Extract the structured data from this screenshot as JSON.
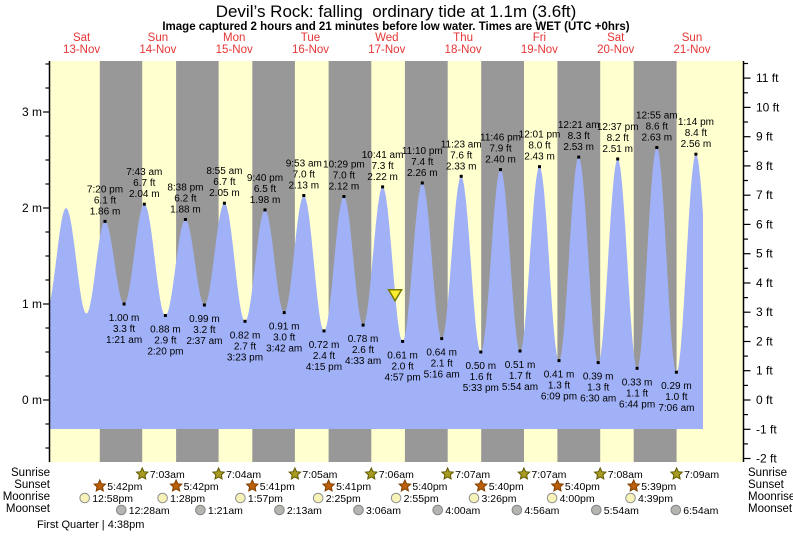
{
  "title": "Devil’s Rock: falling  ordinary tide at 1.1m (3.6ft)",
  "subtitle": "Image captured 2 hours and 21 minutes before low water. Times are WET (UTC +0hrs)",
  "chart_data": {
    "type": "area",
    "title": "Devil’s Rock: falling  ordinary tide at 1.1m (3.6ft)",
    "x_axis": "time (Nov 13 - Nov 21)",
    "ylabel_left": "metres",
    "ylabel_right": "feet",
    "ylim_m": [
      -0.65,
      3.55
    ],
    "grid": false,
    "days": [
      {
        "day": "Sat",
        "date": "13-Nov"
      },
      {
        "day": "Sun",
        "date": "14-Nov"
      },
      {
        "day": "Mon",
        "date": "15-Nov"
      },
      {
        "day": "Tue",
        "date": "16-Nov"
      },
      {
        "day": "Wed",
        "date": "17-Nov"
      },
      {
        "day": "Thu",
        "date": "18-Nov"
      },
      {
        "day": "Fri",
        "date": "19-Nov"
      },
      {
        "day": "Sat",
        "date": "20-Nov"
      },
      {
        "day": "Sun",
        "date": "21-Nov"
      }
    ],
    "left_axis_ticks": [
      {
        "v": 3,
        "label": "3 m"
      },
      {
        "v": 2,
        "label": "2 m"
      },
      {
        "v": 1,
        "label": "1 m"
      },
      {
        "v": 0,
        "label": "0 m"
      }
    ],
    "right_axis_ticks": [
      {
        "v": 11,
        "label": "11 ft"
      },
      {
        "v": 10,
        "label": "10 ft"
      },
      {
        "v": 9,
        "label": "9 ft"
      },
      {
        "v": 8,
        "label": "8 ft"
      },
      {
        "v": 7,
        "label": "7 ft"
      },
      {
        "v": 6,
        "label": "6 ft"
      },
      {
        "v": 5,
        "label": "5 ft"
      },
      {
        "v": 4,
        "label": "4 ft"
      },
      {
        "v": 3,
        "label": "3 ft"
      },
      {
        "v": 2,
        "label": "2 ft"
      },
      {
        "v": 1,
        "label": "1 ft"
      },
      {
        "v": 0,
        "label": "0 ft"
      },
      {
        "v": -1,
        "label": "-1 ft"
      },
      {
        "v": -2,
        "label": "-2 ft"
      }
    ],
    "tide_events": [
      {
        "type": "high",
        "time": "7:20 pm",
        "t": 19.33,
        "m": 1.86,
        "m_label": "1.86 m",
        "ft_label": "6.1 ft"
      },
      {
        "type": "low",
        "time": "1:21 am",
        "t": 25.35,
        "m": 1.0,
        "m_label": "1.00 m",
        "ft_label": "3.3 ft"
      },
      {
        "type": "high",
        "time": "7:43 am",
        "t": 31.72,
        "m": 2.04,
        "m_label": "2.04 m",
        "ft_label": "6.7 ft"
      },
      {
        "type": "low",
        "time": "2:20 pm",
        "t": 38.33,
        "m": 0.88,
        "m_label": "0.88 m",
        "ft_label": "2.9 ft"
      },
      {
        "type": "high",
        "time": "8:38 pm",
        "t": 44.63,
        "m": 1.88,
        "m_label": "1.88 m",
        "ft_label": "6.2 ft"
      },
      {
        "type": "low",
        "time": "2:37 am",
        "t": 50.62,
        "m": 0.99,
        "m_label": "0.99 m",
        "ft_label": "3.2 ft"
      },
      {
        "type": "high",
        "time": "8:55 am",
        "t": 56.92,
        "m": 2.05,
        "m_label": "2.05 m",
        "ft_label": "6.7 ft"
      },
      {
        "type": "low",
        "time": "3:23 pm",
        "t": 63.38,
        "m": 0.82,
        "m_label": "0.82 m",
        "ft_label": "2.7 ft"
      },
      {
        "type": "high",
        "time": "9:40 pm",
        "t": 69.67,
        "m": 1.98,
        "m_label": "1.98 m",
        "ft_label": "6.5 ft"
      },
      {
        "type": "low",
        "time": "3:42 am",
        "t": 75.7,
        "m": 0.91,
        "m_label": "0.91 m",
        "ft_label": "3.0 ft"
      },
      {
        "type": "high",
        "time": "9:53 am",
        "t": 81.88,
        "m": 2.13,
        "m_label": "2.13 m",
        "ft_label": "7.0 ft"
      },
      {
        "type": "low",
        "time": "4:15 pm",
        "t": 88.25,
        "m": 0.72,
        "m_label": "0.72 m",
        "ft_label": "2.4 ft"
      },
      {
        "type": "high",
        "time": "10:29 pm",
        "t": 94.48,
        "m": 2.12,
        "m_label": "2.12 m",
        "ft_label": "7.0 ft"
      },
      {
        "type": "low",
        "time": "4:33 am",
        "t": 100.55,
        "m": 0.78,
        "m_label": "0.78 m",
        "ft_label": "2.6 ft"
      },
      {
        "type": "high",
        "time": "10:41 am",
        "t": 106.68,
        "m": 2.22,
        "m_label": "2.22 m",
        "ft_label": "7.3 ft"
      },
      {
        "type": "low",
        "time": "4:57 pm",
        "t": 112.95,
        "m": 0.61,
        "m_label": "0.61 m",
        "ft_label": "2.0 ft"
      },
      {
        "type": "high",
        "time": "11:10 pm",
        "t": 119.17,
        "m": 2.26,
        "m_label": "2.26 m",
        "ft_label": "7.4 ft"
      },
      {
        "type": "low",
        "time": "5:16 am",
        "t": 125.27,
        "m": 0.64,
        "m_label": "0.64 m",
        "ft_label": "2.1 ft"
      },
      {
        "type": "high",
        "time": "11:23 am",
        "t": 131.38,
        "m": 2.33,
        "m_label": "2.33 m",
        "ft_label": "7.6 ft"
      },
      {
        "type": "low",
        "time": "5:33 pm",
        "t": 137.55,
        "m": 0.5,
        "m_label": "0.50 m",
        "ft_label": "1.6 ft"
      },
      {
        "type": "high",
        "time": "11:46 pm",
        "t": 143.77,
        "m": 2.4,
        "m_label": "2.40 m",
        "ft_label": "7.9 ft"
      },
      {
        "type": "low",
        "time": "5:54 am",
        "t": 149.9,
        "m": 0.51,
        "m_label": "0.51 m",
        "ft_label": "1.7 ft"
      },
      {
        "type": "high",
        "time": "12:01 pm",
        "t": 156.02,
        "m": 2.43,
        "m_label": "2.43 m",
        "ft_label": "8.0 ft"
      },
      {
        "type": "low",
        "time": "6:09 pm",
        "t": 162.15,
        "m": 0.41,
        "m_label": "0.41 m",
        "ft_label": "1.3 ft"
      },
      {
        "type": "high",
        "time": "12:21 am",
        "t": 168.35,
        "m": 2.53,
        "m_label": "2.53 m",
        "ft_label": "8.3 ft"
      },
      {
        "type": "low",
        "time": "6:30 am",
        "t": 174.5,
        "m": 0.39,
        "m_label": "0.39 m",
        "ft_label": "1.3 ft"
      },
      {
        "type": "high",
        "time": "12:37 pm",
        "t": 180.62,
        "m": 2.51,
        "m_label": "2.51 m",
        "ft_label": "8.2 ft"
      },
      {
        "type": "low",
        "time": "6:44 pm",
        "t": 186.73,
        "m": 0.33,
        "m_label": "0.33 m",
        "ft_label": "1.1 ft"
      },
      {
        "type": "high",
        "time": "12:55 am",
        "t": 192.92,
        "m": 2.63,
        "m_label": "2.63 m",
        "ft_label": "8.6 ft"
      },
      {
        "type": "low",
        "time": "7:06 am",
        "t": 199.1,
        "m": 0.29,
        "m_label": "0.29 m",
        "ft_label": "1.0 ft"
      },
      {
        "type": "high",
        "time": "1:14 pm",
        "t": 205.23,
        "m": 2.56,
        "m_label": "2.56 m",
        "ft_label": "8.4 ft"
      }
    ],
    "edge_curve_points": [
      {
        "t": 1.0,
        "m": 0.95
      },
      {
        "t": 7.1,
        "m": 2.0
      },
      {
        "t": 13.5,
        "m": 0.9
      },
      {
        "t": 211.5,
        "m": 0.33
      }
    ],
    "current_tide_marker": {
      "t": 110.6,
      "height_m": 1.1
    },
    "colors": {
      "day_band": "#ffffd0",
      "night_band": "#989898",
      "water": "#a1b1f8",
      "day_label": "#e63535",
      "axis": "#000000",
      "label_text": "#000000",
      "marker_fill": "#ffee2e",
      "marker_stroke": "#7a7a00"
    }
  },
  "astro": {
    "rows": [
      {
        "label": "Sunrise",
        "icon": "sunrise-star",
        "shape": "star",
        "fill": "#a89b22",
        "stroke": "#5f5800",
        "events": [
          {
            "time": "7:03am",
            "t": 31.05
          },
          {
            "time": "7:04am",
            "t": 55.07
          },
          {
            "time": "7:05am",
            "t": 79.08
          },
          {
            "time": "7:06am",
            "t": 103.1
          },
          {
            "time": "7:07am",
            "t": 127.12
          },
          {
            "time": "7:07am",
            "t": 151.12
          },
          {
            "time": "7:08am",
            "t": 175.13
          },
          {
            "time": "7:09am",
            "t": 199.15
          }
        ]
      },
      {
        "label": "Sunset",
        "icon": "sunset-star",
        "shape": "star",
        "fill": "#bc5f08",
        "stroke": "#7d3f00",
        "events": [
          {
            "time": "5:42pm",
            "t": 17.7
          },
          {
            "time": "5:42pm",
            "t": 41.7
          },
          {
            "time": "5:41pm",
            "t": 65.68
          },
          {
            "time": "5:41pm",
            "t": 89.68
          },
          {
            "time": "5:40pm",
            "t": 113.67
          },
          {
            "time": "5:40pm",
            "t": 137.67
          },
          {
            "time": "5:40pm",
            "t": 161.67
          },
          {
            "time": "5:39pm",
            "t": 185.65
          }
        ]
      },
      {
        "label": "Moonrise",
        "icon": "moonrise-circle",
        "shape": "circle",
        "fill": "#f7f3b8",
        "stroke": "#909090",
        "events": [
          {
            "time": "12:58pm",
            "t": 12.97
          },
          {
            "time": "1:28pm",
            "t": 37.47
          },
          {
            "time": "1:57pm",
            "t": 61.95
          },
          {
            "time": "2:25pm",
            "t": 86.42
          },
          {
            "time": "2:55pm",
            "t": 110.92
          },
          {
            "time": "3:26pm",
            "t": 135.43
          },
          {
            "time": "4:00pm",
            "t": 160.0
          },
          {
            "time": "4:39pm",
            "t": 184.65
          }
        ]
      },
      {
        "label": "Moonset",
        "icon": "moonset-circle",
        "shape": "circle",
        "fill": "#b4b4b0",
        "stroke": "#858585",
        "events": [
          {
            "time": "12:28am",
            "t": 24.47
          },
          {
            "time": "1:21am",
            "t": 49.35
          },
          {
            "time": "2:13am",
            "t": 74.22
          },
          {
            "time": "3:06am",
            "t": 99.1
          },
          {
            "time": "4:00am",
            "t": 124.0
          },
          {
            "time": "4:56am",
            "t": 148.93
          },
          {
            "time": "5:54am",
            "t": 173.9
          },
          {
            "time": "6:54am",
            "t": 198.9
          }
        ]
      }
    ],
    "moon_phase": "First Quarter | 4:38pm"
  }
}
